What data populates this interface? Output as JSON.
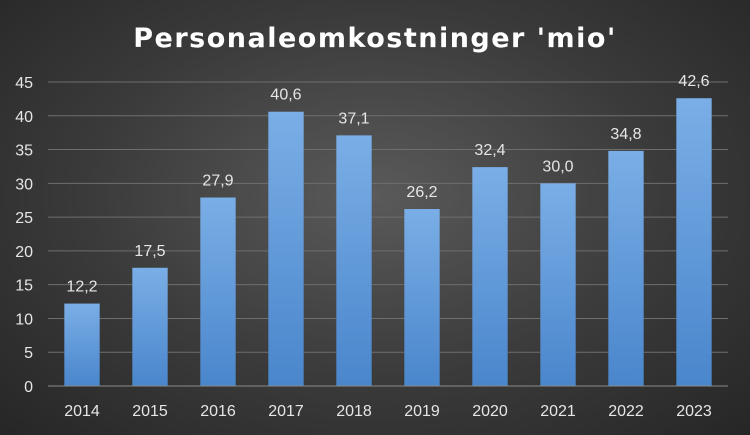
{
  "chart_data": {
    "type": "bar",
    "title": "Personaleomkostninger 'mio'",
    "xlabel": "",
    "ylabel": "",
    "categories": [
      "2014",
      "2015",
      "2016",
      "2017",
      "2018",
      "2019",
      "2020",
      "2021",
      "2022",
      "2023"
    ],
    "values": [
      12.2,
      17.5,
      27.9,
      40.6,
      37.1,
      26.2,
      32.4,
      30.0,
      34.8,
      42.6
    ],
    "data_labels": [
      "12,2",
      "17,5",
      "27,9",
      "40,6",
      "37,1",
      "26,2",
      "32,4",
      "30,0",
      "34,8",
      "42,6"
    ],
    "y_ticks": [
      0,
      5,
      10,
      15,
      20,
      25,
      30,
      35,
      40,
      45
    ],
    "ylim": [
      0,
      45
    ],
    "grid": true,
    "legend": "none",
    "colors": {
      "bar_top": "#7aaee6",
      "bar_bottom": "#4a86cc",
      "background": "#3a3a3a"
    }
  }
}
